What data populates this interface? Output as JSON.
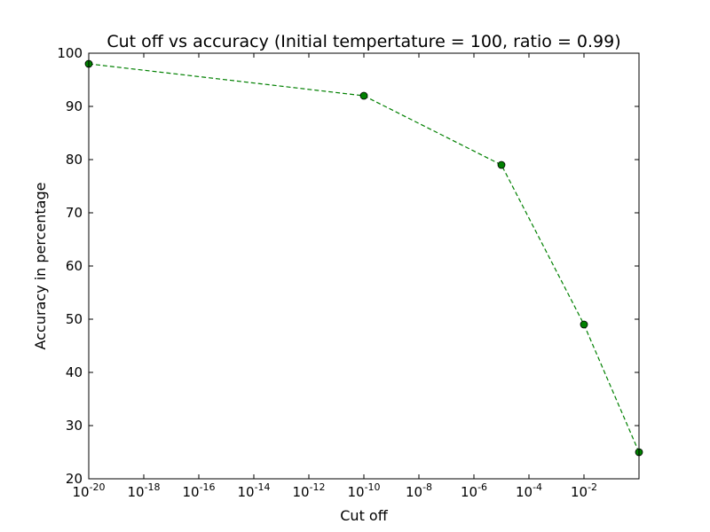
{
  "chart_data": {
    "type": "line",
    "title": "Cut off vs accuracy (Initial tempertature = 100, ratio = 0.99)",
    "xlabel": "Cut off",
    "ylabel": "Accuracy in percentage",
    "xscale": "log",
    "xlim": [
      1e-20,
      1
    ],
    "ylim": [
      20,
      100
    ],
    "x_ticks": [
      {
        "value": 1e-20,
        "base": "10",
        "exp": "-20"
      },
      {
        "value": 1e-18,
        "base": "10",
        "exp": "-18"
      },
      {
        "value": 1e-16,
        "base": "10",
        "exp": "-16"
      },
      {
        "value": 1e-14,
        "base": "10",
        "exp": "-14"
      },
      {
        "value": 1e-12,
        "base": "10",
        "exp": "-12"
      },
      {
        "value": 1e-10,
        "base": "10",
        "exp": "-10"
      },
      {
        "value": 1e-08,
        "base": "10",
        "exp": "-8"
      },
      {
        "value": 1e-06,
        "base": "10",
        "exp": "-6"
      },
      {
        "value": 0.0001,
        "base": "10",
        "exp": "-4"
      },
      {
        "value": 0.01,
        "base": "10",
        "exp": "-2"
      }
    ],
    "y_ticks": [
      20,
      30,
      40,
      50,
      60,
      70,
      80,
      90,
      100
    ],
    "series": [
      {
        "color": "#008000",
        "linestyle": "dashed",
        "marker": "circle",
        "x": [
          1e-20,
          1e-10,
          1e-05,
          0.01,
          1
        ],
        "y": [
          98,
          92,
          79,
          49,
          25
        ]
      }
    ],
    "grid": false,
    "legend": "none"
  }
}
